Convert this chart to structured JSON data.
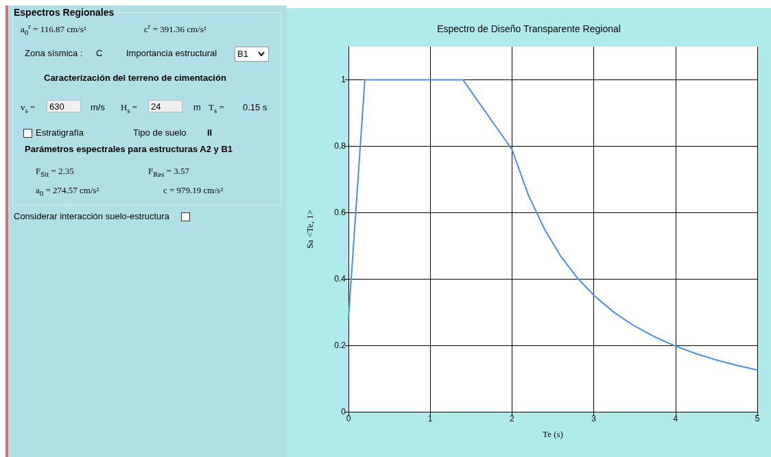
{
  "chart_data": [
    {
      "type": "other",
      "title": "Espectros Regionales",
      "annotations": [
        "a$_{0}$$^{r}$ = 116.87 cm/s²",
        "c$^{r}$ = 391.36 cm/s²",
        "Zona sísmica :",
        "C",
        "Importancia estructural",
        "B1",
        "Caracterización del terreno de cimentación",
        "v$_{s}$ =",
        "630",
        "m/s",
        "H$_{s}$ =",
        "24",
        "m",
        "T$_{s}$ =",
        "0.15 s",
        "Estratigrafía",
        "Tipo de suelo",
        "II",
        "Parámetros espectrales para estructuras A2 y B1",
        "F$_{Sit}$ = 2.35",
        "F$_{Res}$ = 3.57",
        "a$_{0}$ = 274.57 cm/s²",
        "c =  979.19 cm/s²",
        "Considerar interacción suelo-estructura"
      ]
    },
    {
      "type": "line",
      "title": "Espectro de Diseño Transparente Regional",
      "xlabel": "Te (s)",
      "ylabel": "Sa <Te, 1>",
      "xlim": [
        0,
        5
      ],
      "xticks": [
        0,
        1,
        2,
        3,
        4,
        5
      ],
      "ylim": [
        0,
        1.1
      ],
      "yticks": [
        0,
        0.2,
        0.4,
        0.6,
        0.8,
        1
      ],
      "grid": true,
      "marker": "none",
      "line_style": "solid",
      "series": [
        {
          "color": "#4a8ee8",
          "x": [
            0,
            0.2,
            1.4,
            1.5,
            1.6,
            1.8,
            2.0,
            2.2,
            2.4,
            2.6,
            2.8,
            3.0,
            3.25,
            3.5,
            3.75,
            4.0,
            4.25,
            4.5,
            4.75,
            5.0
          ],
          "values": [
            0.28,
            1,
            1,
            0.965,
            0.93,
            0.86,
            0.79,
            0.653,
            0.549,
            0.467,
            0.403,
            0.351,
            0.299,
            0.258,
            0.225,
            0.198,
            0.175,
            0.156,
            0.14,
            0.126
          ]
        }
      ]
    }
  ]
}
